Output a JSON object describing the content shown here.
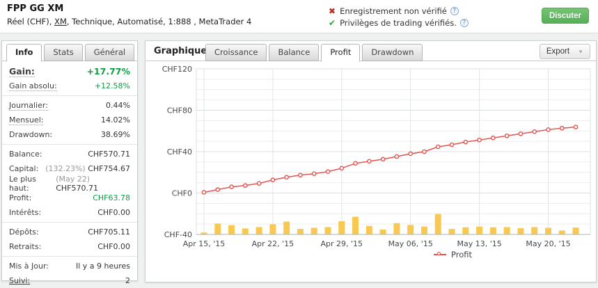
{
  "header": {
    "title": "FPP GG XM",
    "subtitle_prefix": "Réel (CHF), ",
    "broker_link": "XM",
    "subtitle_suffix": ", Technique, Automatisé, 1:888 , MetaTrader 4",
    "verifications": [
      {
        "status": "fail",
        "label": "Enregistrement non vérifié",
        "help": "?"
      },
      {
        "status": "ok",
        "label": "Privilèges de trading vérifiés.",
        "help": "?"
      }
    ],
    "discuss_button": "Discuter"
  },
  "sidebar": {
    "tabs": [
      {
        "label": "Info",
        "active": true
      },
      {
        "label": "Stats",
        "active": false
      },
      {
        "label": "Général",
        "active": false
      }
    ],
    "rows": [
      {
        "label": "Gain:",
        "value": "+17.77%",
        "value_color": "green",
        "big": true,
        "dotted": true
      },
      {
        "label": "Gain absolu:",
        "value": "+12.58%",
        "value_color": "green",
        "dotted": true,
        "divider_after": true
      },
      {
        "label": "Journalier:",
        "value": "0.44%",
        "dotted": true
      },
      {
        "label": "Mensuel:",
        "value": "14.02%",
        "dotted": true
      },
      {
        "label": "Drawdown:",
        "value": "38.69%",
        "divider_after": true
      },
      {
        "label": "Balance:",
        "value": "CHF570.71"
      },
      {
        "label": "Capital:",
        "muted_prefix": "(132.23%) ",
        "value": "CHF754.67"
      },
      {
        "label": "Le plus haut:",
        "muted_prefix": "(May 22) ",
        "value": "CHF570.71"
      },
      {
        "label": "Profit:",
        "value": "CHF63.78",
        "value_color": "green"
      },
      {
        "label": "Intérêts:",
        "value": "CHF0.00",
        "divider_after": true
      },
      {
        "label": "Dépôts:",
        "value": "CHF705.11"
      },
      {
        "label": "Retraits:",
        "value": "CHF0.00",
        "divider_after": true
      },
      {
        "label": "Mis à Jour:",
        "value": "Il y a 9 heures"
      },
      {
        "label": "Suivi:",
        "value": "2",
        "label_link": true
      }
    ]
  },
  "main": {
    "section_label": "Graphique",
    "tabs": [
      {
        "label": "Croissance",
        "active": false
      },
      {
        "label": "Balance",
        "active": false
      },
      {
        "label": "Profit",
        "active": true
      },
      {
        "label": "Drawdown",
        "active": false
      }
    ],
    "export_button": "Export"
  },
  "chart_data": {
    "type": "line+bar",
    "currency": "CHF",
    "x_dates": [
      "Apr 15",
      "Apr 16",
      "Apr 17",
      "Apr 20",
      "Apr 21",
      "Apr 22",
      "Apr 23",
      "Apr 24",
      "Apr 27",
      "Apr 28",
      "Apr 29",
      "Apr 30",
      "May 01",
      "May 04",
      "May 05",
      "May 06",
      "May 07",
      "May 08",
      "May 11",
      "May 12",
      "May 13",
      "May 14",
      "May 15",
      "May 18",
      "May 19",
      "May 20",
      "May 21",
      "May 22"
    ],
    "series": [
      {
        "name": "Profit",
        "type": "line",
        "color": "#e2524e",
        "values": [
          0.7,
          3.3,
          6,
          7.3,
          9.3,
          12.7,
          15.3,
          17.3,
          18.7,
          20.7,
          24,
          28.7,
          30.7,
          32.7,
          35.3,
          38,
          40,
          44.7,
          46.7,
          49.3,
          51.3,
          53.3,
          55.3,
          57.3,
          59.3,
          61.3,
          62.7,
          63.78
        ]
      },
      {
        "name": "Daily profit",
        "type": "bar",
        "color": "#f8c851",
        "baseline": -40,
        "values": [
          1.8,
          10.5,
          8.9,
          5.8,
          7.1,
          9.8,
          12.4,
          5.3,
          6.4,
          7.1,
          12.7,
          17.1,
          8.2,
          4.7,
          10.9,
          9.1,
          7.6,
          19.8,
          5.3,
          6.9,
          7.6,
          6.9,
          7.1,
          6,
          7.1,
          6.4,
          3.8,
          6.7
        ]
      }
    ],
    "ylim": [
      -40,
      120
    ],
    "yticks": [
      {
        "value": 120,
        "label": "CHF120"
      },
      {
        "value": 80,
        "label": "CHF80"
      },
      {
        "value": 40,
        "label": "CHF40"
      },
      {
        "value": 0,
        "label": "CHF0"
      },
      {
        "value": -40,
        "label": "CHF-40"
      }
    ],
    "xticks": [
      {
        "index": 0,
        "label": "Apr 15, '15"
      },
      {
        "index": 5,
        "label": "Apr 22, '15"
      },
      {
        "index": 10,
        "label": "Apr 29, '15"
      },
      {
        "index": 15,
        "label": "May 06, '15"
      },
      {
        "index": 20,
        "label": "May 13, '15"
      },
      {
        "index": 25,
        "label": "May 20, '15"
      }
    ],
    "minor_grid_step": 10,
    "grid": true,
    "legend": [
      {
        "label": "Profit",
        "color": "#e2524e"
      }
    ]
  },
  "colors": {
    "green_text": "#0d9e43",
    "line_red": "#e2524e",
    "bar_yellow": "#f8c851",
    "discuss_green": "#5cb85c"
  }
}
